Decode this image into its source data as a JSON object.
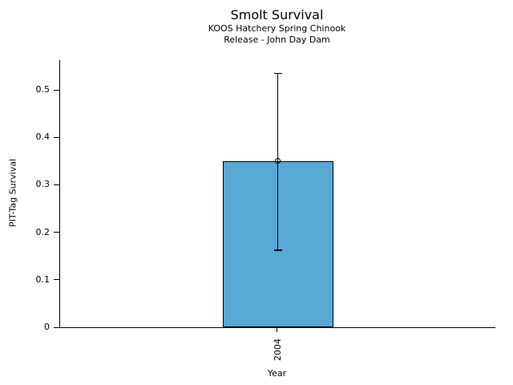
{
  "chart_data": {
    "type": "bar",
    "title": "Smolt Survival",
    "subtitle": [
      "KOOS Hatchery Spring Chinook",
      "Release - John Day Dam"
    ],
    "xlabel": "Year",
    "ylabel": "PIT-Tag Survival",
    "categories": [
      "2004"
    ],
    "values": [
      0.35
    ],
    "error_low": [
      0.162
    ],
    "error_high": [
      0.535
    ],
    "ylim": [
      0,
      0.5625
    ],
    "yticks": [
      0,
      0.1,
      0.2,
      0.3,
      0.4,
      0.5
    ],
    "ytick_labels": [
      "0",
      "0.1",
      "0.2",
      "0.3",
      "0.4",
      "0.5"
    ],
    "bar_color": "#58a9d4",
    "bar_edge_color": "#000000",
    "error_color": "#000000",
    "marker": "open-circle",
    "grid": false,
    "legend": "none"
  }
}
